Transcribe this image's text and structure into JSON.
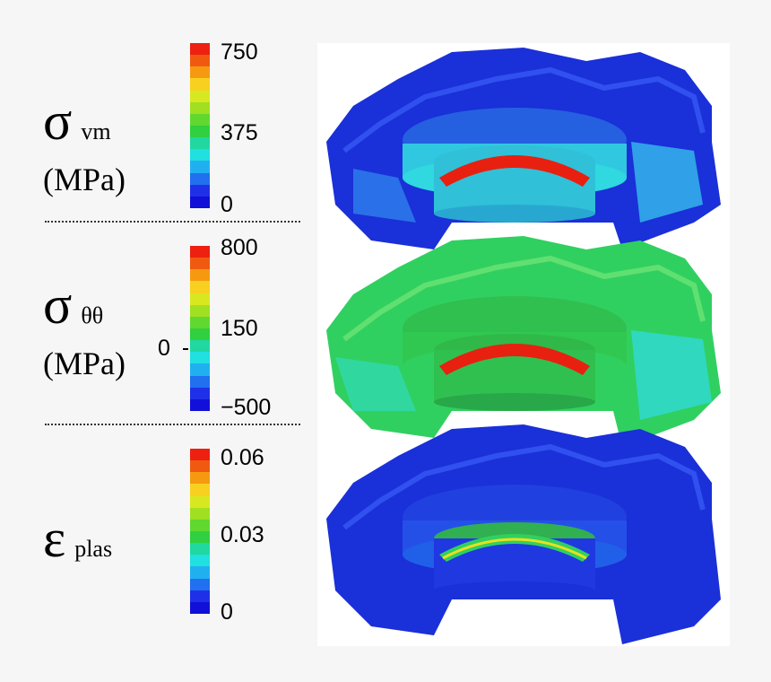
{
  "panels": [
    {
      "symbol": "σ",
      "subscript": "vm",
      "unit": "(MPa)",
      "ticks": [
        "750",
        "375",
        "0"
      ],
      "zero_mark": ""
    },
    {
      "symbol": "σ",
      "subscript": "θθ",
      "unit": "(MPa)",
      "ticks": [
        "800",
        "150",
        "−500"
      ],
      "zero_mark": "0"
    },
    {
      "symbol": "ε",
      "subscript": "plas",
      "unit": "",
      "ticks": [
        "0.06",
        "0.03",
        "0"
      ],
      "zero_mark": ""
    }
  ],
  "colormap": [
    "#ee2010",
    "#f05a10",
    "#f59a10",
    "#f8d020",
    "#d8e820",
    "#a0e020",
    "#60d830",
    "#30d040",
    "#20d8a0",
    "#20e0e0",
    "#20b0f0",
    "#2070f0",
    "#2030e8",
    "#1010d8"
  ],
  "render_colors": {
    "blue": "#1a30d8",
    "cyan": "#30d8e0",
    "green": "#30d060",
    "red": "#e82010"
  }
}
